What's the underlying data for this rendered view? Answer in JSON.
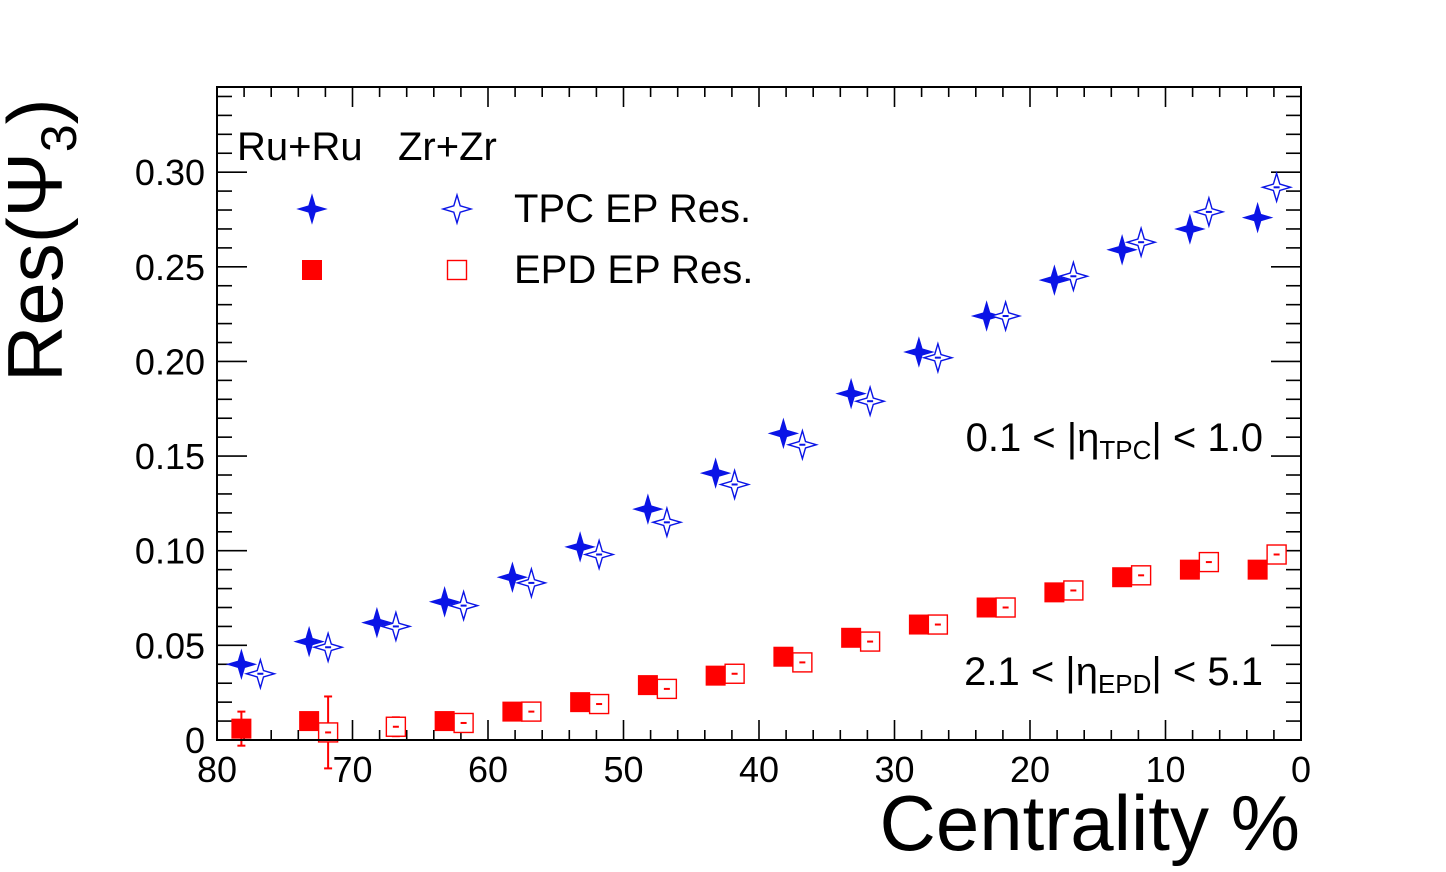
{
  "chart_data": {
    "type": "scatter",
    "title": "",
    "xlabel": "Centrality %",
    "ylabel": {
      "main": "Res(Ψ",
      "sub": "3",
      "close": ")"
    },
    "xlim": [
      80,
      0
    ],
    "ylim": [
      0,
      0.345
    ],
    "x_ticks": [
      80,
      70,
      60,
      50,
      40,
      30,
      20,
      10,
      0
    ],
    "y_ticks": [
      0,
      0.05,
      0.1,
      0.15,
      0.2,
      0.25,
      0.3
    ],
    "y_tick_labels": [
      "0",
      "0.05",
      "0.10",
      "0.15",
      "0.20",
      "0.25",
      "0.30"
    ],
    "legend": {
      "header_ru": "Ru+Ru",
      "header_zr": "Zr+Zr",
      "tpc_label": "TPC EP Res.",
      "epd_label": "EPD EP Res."
    },
    "annotations": {
      "tpc_eta": {
        "prefix": "0.1 < |η",
        "sub": "TPC",
        "suffix": "| < 1.0"
      },
      "epd_eta": {
        "prefix": "2.1 < |η",
        "sub": "EPD",
        "suffix": "| < 5.1"
      }
    },
    "series": [
      {
        "name": "Ru+Ru TPC EP Res.",
        "marker": "star-filled",
        "color": "#0a14e6",
        "points": [
          {
            "x": 78.2,
            "y": 0.04,
            "err": 0.0
          },
          {
            "x": 73.2,
            "y": 0.052,
            "err": 0.0
          },
          {
            "x": 68.2,
            "y": 0.062,
            "err": 0.0
          },
          {
            "x": 63.2,
            "y": 0.073,
            "err": 0.0
          },
          {
            "x": 58.2,
            "y": 0.086,
            "err": 0.0
          },
          {
            "x": 53.2,
            "y": 0.102,
            "err": 0.0
          },
          {
            "x": 48.2,
            "y": 0.122,
            "err": 0.0
          },
          {
            "x": 43.2,
            "y": 0.141,
            "err": 0.0
          },
          {
            "x": 38.2,
            "y": 0.162,
            "err": 0.0
          },
          {
            "x": 33.2,
            "y": 0.183,
            "err": 0.0
          },
          {
            "x": 28.2,
            "y": 0.205,
            "err": 0.0
          },
          {
            "x": 23.2,
            "y": 0.224,
            "err": 0.0
          },
          {
            "x": 18.2,
            "y": 0.243,
            "err": 0.0
          },
          {
            "x": 13.2,
            "y": 0.259,
            "err": 0.0
          },
          {
            "x": 8.2,
            "y": 0.27,
            "err": 0.0
          },
          {
            "x": 3.2,
            "y": 0.276,
            "err": 0.0
          }
        ]
      },
      {
        "name": "Zr+Zr TPC EP Res.",
        "marker": "star-open",
        "color": "#0a14e6",
        "points": [
          {
            "x": 76.8,
            "y": 0.035,
            "err": 0.0
          },
          {
            "x": 71.8,
            "y": 0.049,
            "err": 0.0
          },
          {
            "x": 66.8,
            "y": 0.06,
            "err": 0.0
          },
          {
            "x": 61.8,
            "y": 0.071,
            "err": 0.0
          },
          {
            "x": 56.8,
            "y": 0.083,
            "err": 0.0
          },
          {
            "x": 51.8,
            "y": 0.098,
            "err": 0.0
          },
          {
            "x": 46.8,
            "y": 0.115,
            "err": 0.0
          },
          {
            "x": 41.8,
            "y": 0.135,
            "err": 0.0
          },
          {
            "x": 36.8,
            "y": 0.156,
            "err": 0.0
          },
          {
            "x": 31.8,
            "y": 0.179,
            "err": 0.0
          },
          {
            "x": 26.8,
            "y": 0.202,
            "err": 0.0
          },
          {
            "x": 21.8,
            "y": 0.224,
            "err": 0.0
          },
          {
            "x": 16.8,
            "y": 0.245,
            "err": 0.0
          },
          {
            "x": 11.8,
            "y": 0.263,
            "err": 0.0
          },
          {
            "x": 6.8,
            "y": 0.279,
            "err": 0.0
          },
          {
            "x": 1.8,
            "y": 0.292,
            "err": 0.0
          }
        ]
      },
      {
        "name": "Ru+Ru EPD EP Res.",
        "marker": "square-filled",
        "color": "#ff0000",
        "points": [
          {
            "x": 78.2,
            "y": 0.006,
            "err": 0.009
          },
          {
            "x": 73.2,
            "y": 0.01,
            "err": 0.0
          },
          {
            "x": 63.2,
            "y": 0.01,
            "err": 0.0
          },
          {
            "x": 58.2,
            "y": 0.015,
            "err": 0.0
          },
          {
            "x": 53.2,
            "y": 0.02,
            "err": 0.0
          },
          {
            "x": 48.2,
            "y": 0.029,
            "err": 0.0
          },
          {
            "x": 43.2,
            "y": 0.034,
            "err": 0.0
          },
          {
            "x": 38.2,
            "y": 0.044,
            "err": 0.0
          },
          {
            "x": 33.2,
            "y": 0.054,
            "err": 0.0
          },
          {
            "x": 28.2,
            "y": 0.061,
            "err": 0.0
          },
          {
            "x": 23.2,
            "y": 0.07,
            "err": 0.0
          },
          {
            "x": 18.2,
            "y": 0.078,
            "err": 0.0
          },
          {
            "x": 13.2,
            "y": 0.086,
            "err": 0.0
          },
          {
            "x": 8.2,
            "y": 0.09,
            "err": 0.0
          },
          {
            "x": 3.2,
            "y": 0.09,
            "err": 0.0
          }
        ]
      },
      {
        "name": "Zr+Zr EPD EP Res.",
        "marker": "square-open",
        "color": "#ff0000",
        "points": [
          {
            "x": 71.8,
            "y": 0.004,
            "err": 0.019
          },
          {
            "x": 66.8,
            "y": 0.007,
            "err": 0.005
          },
          {
            "x": 61.8,
            "y": 0.009,
            "err": 0.004
          },
          {
            "x": 56.8,
            "y": 0.015,
            "err": 0.003
          },
          {
            "x": 51.8,
            "y": 0.019,
            "err": 0.002
          },
          {
            "x": 46.8,
            "y": 0.027,
            "err": 0.001
          },
          {
            "x": 41.8,
            "y": 0.035,
            "err": 0.001
          },
          {
            "x": 36.8,
            "y": 0.041,
            "err": 0.001
          },
          {
            "x": 31.8,
            "y": 0.052,
            "err": 0.001
          },
          {
            "x": 26.8,
            "y": 0.061,
            "err": 0.0005
          },
          {
            "x": 21.8,
            "y": 0.07,
            "err": 0.0005
          },
          {
            "x": 16.8,
            "y": 0.079,
            "err": 0.0005
          },
          {
            "x": 11.8,
            "y": 0.087,
            "err": 0.0005
          },
          {
            "x": 6.8,
            "y": 0.094,
            "err": 0.0005
          },
          {
            "x": 1.8,
            "y": 0.098,
            "err": 0.0005
          }
        ]
      }
    ]
  }
}
